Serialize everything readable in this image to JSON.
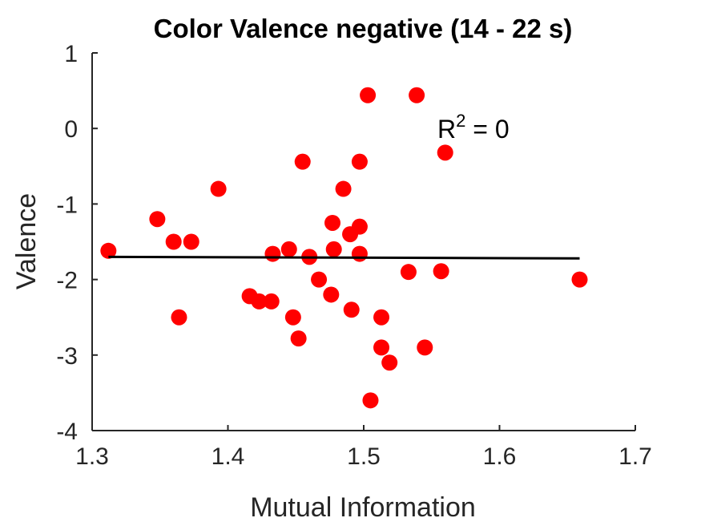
{
  "chart_data": {
    "type": "scatter",
    "title": "Color Valence negative (14 - 22 s)",
    "xlabel": "Mutual Information",
    "ylabel": "Valence",
    "xlim": [
      1.3,
      1.7
    ],
    "ylim": [
      -4,
      1
    ],
    "xticks": [
      "1.3",
      "1.4",
      "1.5",
      "1.6",
      "1.7"
    ],
    "yticks": [
      "1",
      "0",
      "-1",
      "-2",
      "-3",
      "-4"
    ],
    "annotation": {
      "base": "R",
      "superscript": "2",
      "suffix": " = 0"
    },
    "marker_color": "#ff0000",
    "line_color": "#000000",
    "grid": false,
    "fit_line": {
      "x": [
        1.312,
        1.659
      ],
      "y": [
        -1.7,
        -1.72
      ]
    },
    "points": [
      {
        "x": 1.312,
        "y": -1.62
      },
      {
        "x": 1.348,
        "y": -1.2
      },
      {
        "x": 1.36,
        "y": -1.5
      },
      {
        "x": 1.364,
        "y": -2.5
      },
      {
        "x": 1.373,
        "y": -1.5
      },
      {
        "x": 1.393,
        "y": -0.8
      },
      {
        "x": 1.416,
        "y": -2.22
      },
      {
        "x": 1.423,
        "y": -2.29
      },
      {
        "x": 1.432,
        "y": -2.29
      },
      {
        "x": 1.433,
        "y": -1.66
      },
      {
        "x": 1.445,
        "y": -1.6
      },
      {
        "x": 1.448,
        "y": -2.5
      },
      {
        "x": 1.452,
        "y": -2.78
      },
      {
        "x": 1.455,
        "y": -0.44
      },
      {
        "x": 1.46,
        "y": -1.7
      },
      {
        "x": 1.467,
        "y": -2.0
      },
      {
        "x": 1.476,
        "y": -2.2
      },
      {
        "x": 1.477,
        "y": -1.25
      },
      {
        "x": 1.478,
        "y": -1.6
      },
      {
        "x": 1.485,
        "y": -0.8
      },
      {
        "x": 1.49,
        "y": -1.4
      },
      {
        "x": 1.491,
        "y": -2.4
      },
      {
        "x": 1.497,
        "y": -1.3
      },
      {
        "x": 1.497,
        "y": -1.66
      },
      {
        "x": 1.497,
        "y": -0.44
      },
      {
        "x": 1.503,
        "y": 0.44
      },
      {
        "x": 1.505,
        "y": -3.6
      },
      {
        "x": 1.513,
        "y": -2.5
      },
      {
        "x": 1.513,
        "y": -2.9
      },
      {
        "x": 1.519,
        "y": -3.1
      },
      {
        "x": 1.533,
        "y": -1.9
      },
      {
        "x": 1.539,
        "y": 0.44
      },
      {
        "x": 1.545,
        "y": -2.9
      },
      {
        "x": 1.557,
        "y": -1.89
      },
      {
        "x": 1.56,
        "y": -0.32
      },
      {
        "x": 1.659,
        "y": -2.0
      }
    ]
  }
}
